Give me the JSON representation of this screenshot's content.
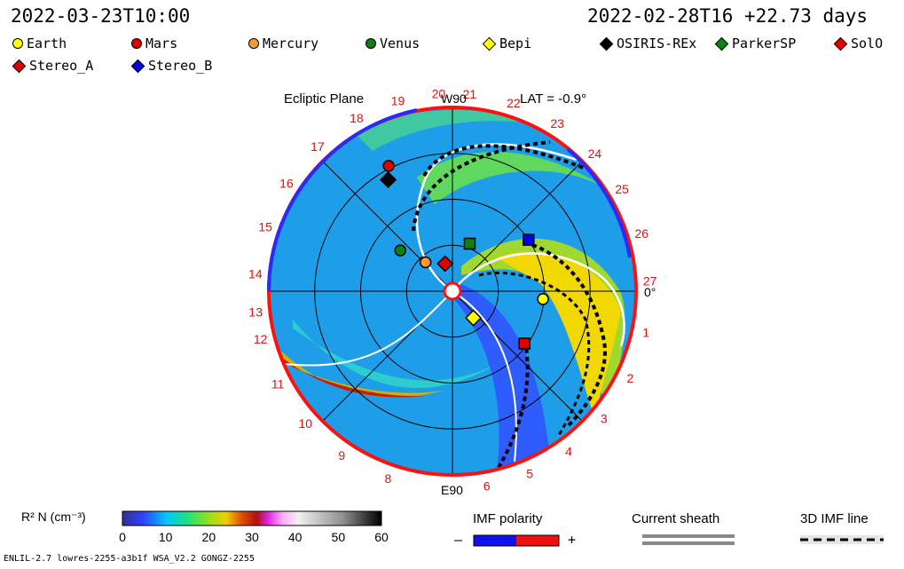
{
  "header": {
    "current_time": "2022-03-23T10:00",
    "run_info": "2022-02-28T16 +22.73 days"
  },
  "legend": [
    {
      "label": "Earth",
      "symbol": "circle",
      "color": "#ffff00"
    },
    {
      "label": "Mars",
      "symbol": "circle",
      "color": "#e00000"
    },
    {
      "label": "Mercury",
      "symbol": "circle",
      "color": "#ff9933"
    },
    {
      "label": "Venus",
      "symbol": "circle",
      "color": "#108010"
    },
    {
      "label": "Bepi",
      "symbol": "diamond",
      "color": "#ffff00"
    },
    {
      "label": "OSIRIS-REx",
      "symbol": "diamond",
      "color": "#000000"
    },
    {
      "label": "ParkerSP",
      "symbol": "diamond",
      "color": "#108010"
    },
    {
      "label": "SolO",
      "symbol": "diamond",
      "color": "#e00000"
    },
    {
      "label": "Stereo_A",
      "symbol": "diamond",
      "color": "#e00000"
    },
    {
      "label": "Stereo_B",
      "symbol": "diamond",
      "color": "#0000ee"
    }
  ],
  "chart_data": {
    "type": "heatmap",
    "title": "Ecliptic Plane",
    "lat_label": "LAT = -0.9°",
    "quantity": "R² N (cm⁻³)",
    "top_label": "W90",
    "bottom_label": "E90",
    "right_label": "0°",
    "colorbar": {
      "min": 0,
      "max": 60,
      "ticks": [
        0,
        10,
        20,
        30,
        40,
        50,
        60
      ]
    },
    "carrington_sector_labels": [
      "1",
      "2",
      "3",
      "4",
      "5",
      "6",
      "8",
      "9",
      "10",
      "11",
      "12",
      "13",
      "14",
      "15",
      "16",
      "17",
      "18",
      "19",
      "20",
      "21",
      "22",
      "23",
      "24",
      "25",
      "26",
      "27"
    ],
    "range_rings_au": [
      0.5,
      1.0,
      1.5
    ],
    "bodies": [
      {
        "name": "Earth",
        "lon_deg": -5,
        "r_au": 0.99
      },
      {
        "name": "Mars",
        "lon_deg": 117,
        "r_au": 1.53
      },
      {
        "name": "Mercury",
        "lon_deg": 133,
        "r_au": 0.43
      },
      {
        "name": "Venus",
        "lon_deg": 142,
        "r_au": 0.72
      },
      {
        "name": "Bepi",
        "lon_deg": -52,
        "r_au": 0.37
      },
      {
        "name": "OSIRIS-REx",
        "lon_deg": 120,
        "r_au": 1.4
      },
      {
        "name": "ParkerSP",
        "lon_deg": 70,
        "r_au": 0.55
      },
      {
        "name": "SolO",
        "lon_deg": 105,
        "r_au": 0.31
      },
      {
        "name": "Stereo_A",
        "lon_deg": -36,
        "r_au": 0.97
      },
      {
        "name": "Stereo_B",
        "lon_deg": 34,
        "r_au": 1.0
      }
    ]
  },
  "panels": {
    "imf_title": "IMF polarity",
    "imf_minus": "–",
    "imf_plus": "+",
    "sheath_title": "Current sheath",
    "imf3d_title": "3D IMF line"
  },
  "footer": {
    "model_info": "ENLIL-2.7 lowres-2255-a3b1f WSA_V2.2 GONGZ-2255"
  }
}
